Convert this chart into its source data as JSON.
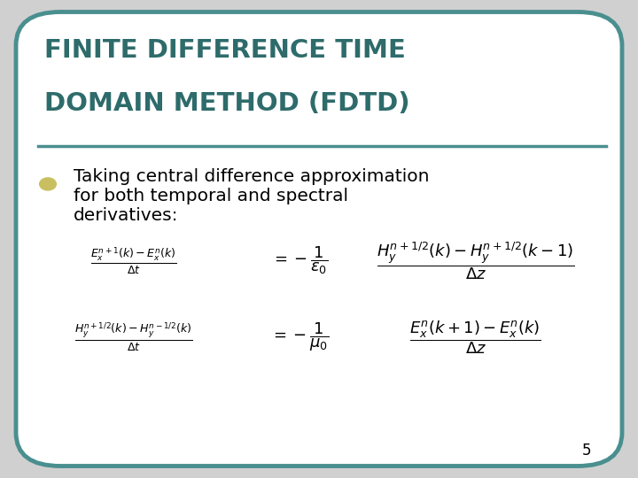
{
  "title_line1": "FINITE DIFFERENCE TIME",
  "title_line2": "DOMAIN METHOD (FDTD)",
  "title_color": "#2E6B6B",
  "background_color": "#FFFFFF",
  "slide_border_color": "#4A8F8F",
  "bullet_text_line1": "Taking central difference approximation",
  "bullet_text_line2": "for both temporal and spectral",
  "bullet_text_line3": "derivatives:",
  "bullet_color": "#C8C060",
  "text_color": "#000000",
  "page_number": "5",
  "outer_bg": "#D0D0D0"
}
